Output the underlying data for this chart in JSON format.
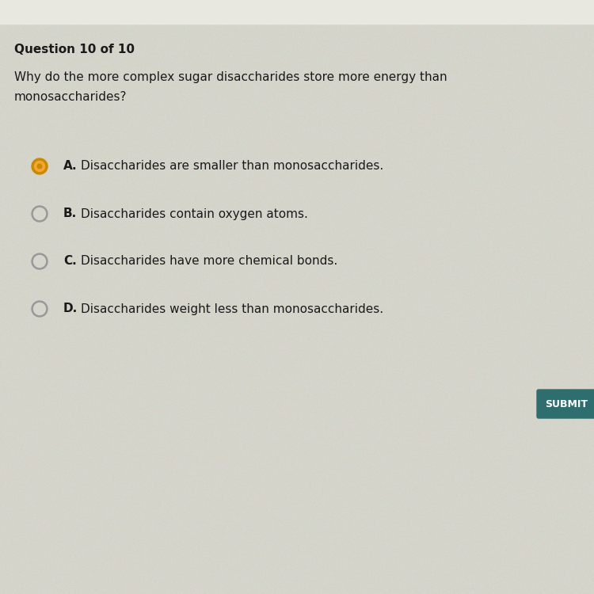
{
  "background_color": "#d5d5cb",
  "question_number": "Question 10 of 10",
  "question_text_line1": "Why do the more complex sugar disaccharides store more energy than",
  "question_text_line2": "monosaccharides?",
  "options": [
    {
      "letter": "A",
      "text": "Disaccharides are smaller than monosaccharides.",
      "selected": true
    },
    {
      "letter": "B",
      "text": "Disaccharides contain oxygen atoms.",
      "selected": false
    },
    {
      "letter": "C",
      "text": "Disaccharides have more chemical bonds.",
      "selected": false
    },
    {
      "letter": "D",
      "text": "Disaccharides weight less than monosaccharides.",
      "selected": false
    }
  ],
  "submit_button_color": "#2e6e6e",
  "submit_text": "SUBMIT",
  "selected_outer_color": "#cc8800",
  "selected_inner_color": "#f0a830",
  "selected_center_color": "#cc8800",
  "unselected_ring_color": "#999999",
  "text_color": "#1a1a1a",
  "question_number_fontsize": 11,
  "question_text_fontsize": 11,
  "option_fontsize": 11,
  "submit_fontsize": 9
}
